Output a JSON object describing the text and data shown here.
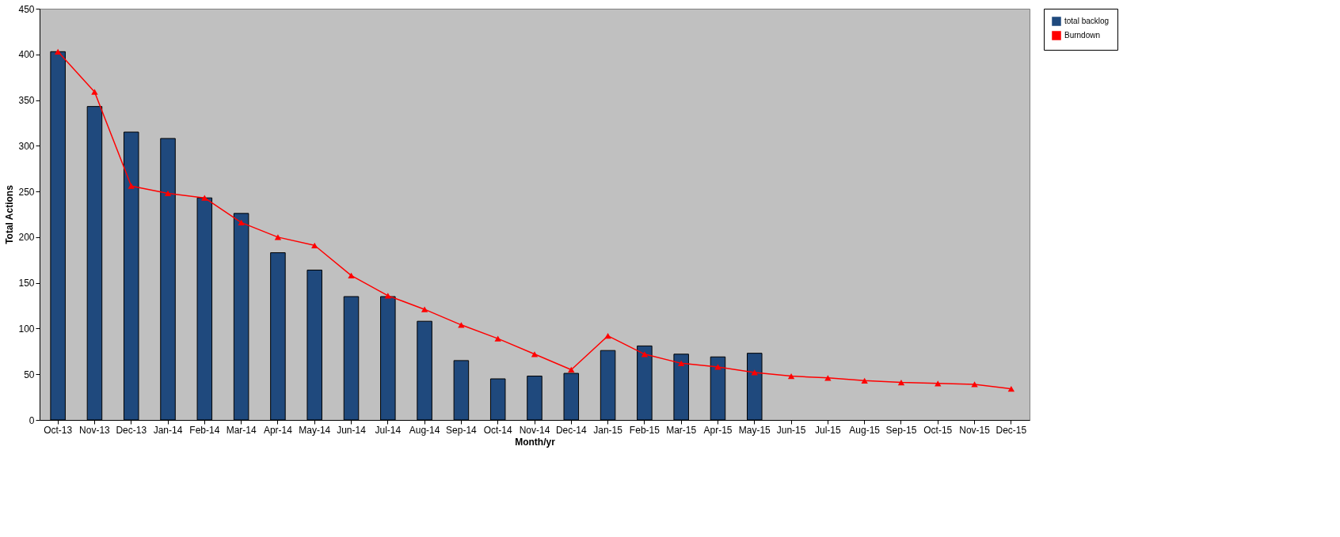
{
  "chart_data": {
    "type": "bar",
    "xlabel": "Month/yr",
    "ylabel": "Total Actions",
    "categories": [
      "Oct-13",
      "Nov-13",
      "Dec-13",
      "Jan-14",
      "Feb-14",
      "Mar-14",
      "Apr-14",
      "May-14",
      "Jun-14",
      "Jul-14",
      "Aug-14",
      "Sep-14",
      "Oct-14",
      "Nov-14",
      "Dec-14",
      "Jan-15",
      "Feb-15",
      "Mar-15",
      "Apr-15",
      "May-15",
      "Jun-15",
      "Jul-15",
      "Aug-15",
      "Sep-15",
      "Oct-15",
      "Nov-15",
      "Dec-15"
    ],
    "series": [
      {
        "name": "total backlog",
        "color": "#1f497d",
        "values": [
          403,
          343,
          315,
          308,
          243,
          226,
          183,
          164,
          135,
          135,
          108,
          65,
          45,
          48,
          51,
          76,
          81,
          72,
          69,
          73,
          null,
          null,
          null,
          null,
          null,
          null,
          null
        ]
      },
      {
        "name": "Burndown",
        "type": "line",
        "color": "#ff0000",
        "marker": "triangle",
        "values": [
          403,
          359,
          256,
          248,
          243,
          216,
          200,
          191,
          158,
          136,
          121,
          104,
          89,
          72,
          55,
          92,
          72,
          62,
          58,
          52,
          48,
          46,
          43,
          41,
          40,
          39,
          34
        ]
      }
    ],
    "ylim": [
      0,
      450
    ],
    "yticks": [
      0,
      50,
      100,
      150,
      200,
      250,
      300,
      350,
      400,
      450
    ],
    "grid": false,
    "legend": "right"
  }
}
